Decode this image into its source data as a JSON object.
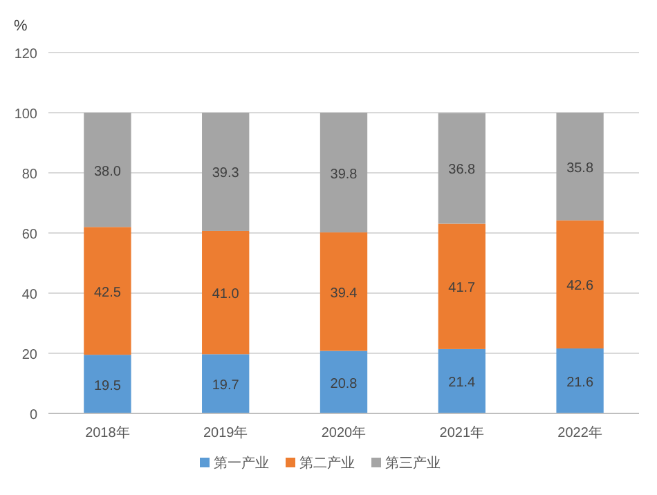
{
  "chart_data": {
    "type": "bar",
    "stacked": true,
    "ylabel": "%",
    "categories": [
      "2018年",
      "2019年",
      "2020年",
      "2021年",
      "2022年"
    ],
    "series": [
      {
        "name": "第一产业",
        "color": "#5b9bd5",
        "values": [
          19.5,
          19.7,
          20.8,
          21.4,
          21.6
        ],
        "value_labels": [
          "19.5",
          "19.7",
          "20.8",
          "21.4",
          "21.6"
        ]
      },
      {
        "name": "第二产业",
        "color": "#ed7d31",
        "values": [
          42.5,
          41.0,
          39.4,
          41.7,
          42.6
        ],
        "value_labels": [
          "42.5",
          "41.0",
          "39.4",
          "41.7",
          "42.6"
        ]
      },
      {
        "name": "第三产业",
        "color": "#a5a5a5",
        "values": [
          38.0,
          39.3,
          39.8,
          36.8,
          35.8
        ],
        "value_labels": [
          "38.0",
          "39.3",
          "39.8",
          "36.8",
          "35.8"
        ]
      }
    ],
    "ylim": [
      0,
      120
    ],
    "yticks": [
      0,
      20,
      40,
      60,
      80,
      100,
      120
    ],
    "grid": "y",
    "legend": "bottom"
  }
}
